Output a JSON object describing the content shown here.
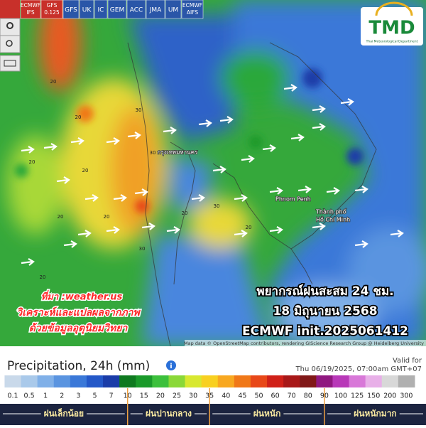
{
  "toolbar": {
    "models": [
      {
        "lines": [
          "ECMWF",
          "IFS"
        ],
        "active": true
      },
      {
        "lines": [
          "GFS",
          "0.125"
        ],
        "active": true
      },
      {
        "lines": [
          "GFS"
        ],
        "active": false
      },
      {
        "lines": [
          "UK"
        ],
        "active": false
      },
      {
        "lines": [
          "IC"
        ],
        "active": false
      },
      {
        "lines": [
          "GEM"
        ],
        "active": false
      },
      {
        "lines": [
          "ACC"
        ],
        "active": false
      },
      {
        "lines": [
          "JMA"
        ],
        "active": false
      },
      {
        "lines": [
          "UM"
        ],
        "active": false
      },
      {
        "lines": [
          "ECMWF",
          "AIFS"
        ],
        "active": false
      }
    ]
  },
  "logo": {
    "text": "TMD",
    "subtitle": "Thai Meteorological Department"
  },
  "map": {
    "places": [
      "กรุงเทพมหานคร",
      "Phnom Penh",
      "Thành phố",
      "Hồ Chí Minh"
    ],
    "labels": [
      "20",
      "20",
      "30",
      "20",
      "20",
      "30",
      "20",
      "20",
      "30",
      "20",
      "20",
      "30",
      "20",
      "20"
    ],
    "attribution": "Map data © OpenStreetMap contributors, rendering GIScience Research Group @ Heidelberg University"
  },
  "overlay": {
    "source": [
      "ที่มา :weather.us",
      "วิเคราะห์และแปลผลจากภาพ",
      "ด้วยข้อมูลอุตุนิยมวิทยา"
    ],
    "forecast": [
      "พยากรณ์ฝนสะสม 24 ชม.",
      "18 มิถุนายน 2568",
      "ECMWF init.2025061412"
    ]
  },
  "legend": {
    "title": "Precipitation, 24h (mm)",
    "valid_label": "Valid for",
    "valid_time": "Thu 06/19/2025, 07:00am GMT+07",
    "scale": [
      {
        "label": 0.1,
        "color": "#c9d9ea"
      },
      {
        "label": 0.5,
        "color": "#a9c9ea"
      },
      {
        "label": 1,
        "color": "#80b0e8"
      },
      {
        "label": 2,
        "color": "#5a94e0"
      },
      {
        "label": 3,
        "color": "#3a78d8"
      },
      {
        "label": 5,
        "color": "#2458c8"
      },
      {
        "label": 7,
        "color": "#1a3ca8"
      },
      {
        "label": 10,
        "color": "#0f7a20"
      },
      {
        "label": 15,
        "color": "#1a9a2a"
      },
      {
        "label": 20,
        "color": "#3cc03c"
      },
      {
        "label": 25,
        "color": "#8ad838"
      },
      {
        "label": 30,
        "color": "#d8e830"
      },
      {
        "label": 35,
        "color": "#f8d020"
      },
      {
        "label": 40,
        "color": "#f8a820"
      },
      {
        "label": 45,
        "color": "#f07818"
      },
      {
        "label": 50,
        "color": "#e84818"
      },
      {
        "label": 60,
        "color": "#d02018"
      },
      {
        "label": 70,
        "color": "#a81818"
      },
      {
        "label": 80,
        "color": "#801818"
      },
      {
        "label": 90,
        "color": "#901880"
      },
      {
        "label": 100,
        "color": "#b838b8"
      },
      {
        "label": 125,
        "color": "#d878d8"
      },
      {
        "label": 150,
        "color": "#e8b0e8"
      },
      {
        "label": 200,
        "color": "#d8d8d8"
      },
      {
        "label": 300,
        "color": "#b0b0b0"
      }
    ],
    "categories": [
      "ฝนเล็กน้อย",
      "ฝนปานกลาง",
      "ฝนหนัก",
      "ฝนหนักมาก"
    ]
  }
}
